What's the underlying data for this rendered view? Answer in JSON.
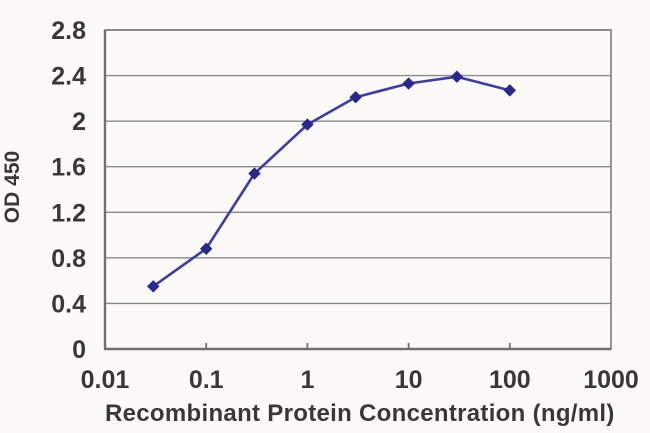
{
  "chart_data": {
    "type": "line",
    "title": "",
    "xlabel": "Recombinant Protein Concentration (ng/ml)",
    "ylabel": "OD 450",
    "x_scale": "log",
    "xlim": [
      0.01,
      1000
    ],
    "ylim": [
      0,
      2.8
    ],
    "x": [
      0.03,
      0.1,
      0.3,
      1,
      3,
      10,
      30,
      100
    ],
    "y": [
      0.55,
      0.88,
      1.54,
      1.97,
      2.21,
      2.33,
      2.39,
      2.27
    ],
    "x_tick_values": [
      0.01,
      0.1,
      1,
      10,
      100,
      1000
    ],
    "x_tick_labels": [
      "0.01",
      "0.1",
      "1",
      "10",
      "100",
      "1000"
    ],
    "y_tick_values": [
      0,
      0.4,
      0.8,
      1.2,
      1.6,
      2,
      2.4,
      2.8
    ],
    "y_tick_labels": [
      "0",
      "0.4",
      "0.8",
      "1.2",
      "1.6",
      "2",
      "2.4",
      "2.8"
    ],
    "grid": "horizontal",
    "legend": "none",
    "marker": "diamond",
    "colors": {
      "line": "#3b3baa",
      "marker": "#28288e",
      "gridline": "#8a8a8a",
      "frame": "#7d7d7d",
      "axis": "#6f6f6f",
      "text": "#383838",
      "background": "#fbfaf6"
    }
  }
}
